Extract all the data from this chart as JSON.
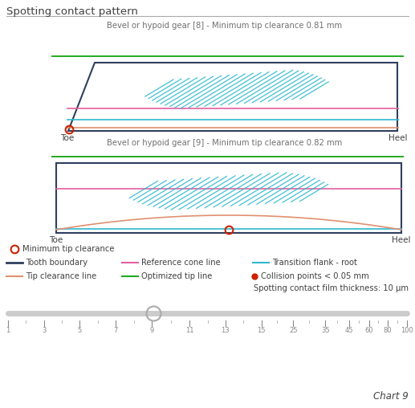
{
  "title": "Spotting contact pattern",
  "gear8_title": "Bevel or hypoid gear [8] - Minimum tip clearance 0.81 mm",
  "gear9_title": "Bevel or hypoid gear [9] - Minimum tip clearance 0.82 mm",
  "bg_color": "#ffffff",
  "title_color": "#404040",
  "gear_title_color": "#707070",
  "tooth_boundary_color": "#2f3f5f",
  "ref_cone_color": "#e060a0",
  "trans_flank_color": "#30b8d0",
  "tip_clearance_color": "#e09070",
  "opt_tip_color": "#22aa22",
  "contact_color": "#30b8d0",
  "min_tip_color": "#cc2200",
  "chart_label": "Chart 9",
  "film_thickness_text": "Spotting contact film thickness: 10 μm",
  "slider_ticks": [
    1,
    3,
    5,
    7,
    9,
    11,
    13,
    15,
    25,
    35,
    45,
    60,
    80,
    100
  ],
  "slider_value": 10
}
